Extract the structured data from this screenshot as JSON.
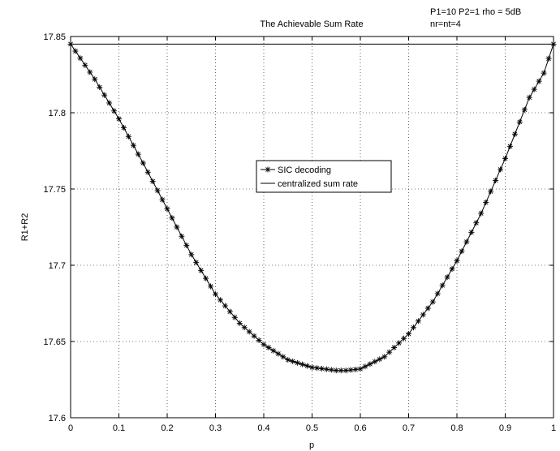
{
  "chart_data": {
    "type": "line",
    "title": "The Achievable Sum Rate",
    "annotation_lines": [
      "P1=10 P2=1 rho = 5dB",
      "nr=nt=4"
    ],
    "xlabel": "p",
    "ylabel": "R1+R2",
    "xlim": [
      0,
      1
    ],
    "ylim": [
      17.6,
      17.85
    ],
    "x_ticks": [
      "0",
      "0.1",
      "0.2",
      "0.3",
      "0.4",
      "0.5",
      "0.6",
      "0.7",
      "0.8",
      "0.9",
      "1"
    ],
    "x_tick_values": [
      0,
      0.1,
      0.2,
      0.3,
      0.4,
      0.5,
      0.6,
      0.7,
      0.8,
      0.9,
      1
    ],
    "y_ticks": [
      "17.6",
      "17.65",
      "17.7",
      "17.75",
      "17.8",
      "17.85"
    ],
    "y_tick_values": [
      17.6,
      17.65,
      17.7,
      17.75,
      17.8,
      17.85
    ],
    "grid": true,
    "legend_position": "center",
    "series": [
      {
        "name": "SIC decoding",
        "marker": "asterisk",
        "x": [
          0,
          0.05,
          0.1,
          0.15,
          0.2,
          0.25,
          0.3,
          0.35,
          0.4,
          0.45,
          0.5,
          0.55,
          0.57,
          0.6,
          0.65,
          0.7,
          0.75,
          0.8,
          0.85,
          0.9,
          0.95,
          0.98,
          1
        ],
        "y": [
          17.845,
          17.822,
          17.796,
          17.767,
          17.737,
          17.707,
          17.681,
          17.662,
          17.648,
          17.638,
          17.633,
          17.631,
          17.631,
          17.632,
          17.64,
          17.655,
          17.676,
          17.703,
          17.734,
          17.77,
          17.81,
          17.826,
          17.845
        ]
      },
      {
        "name": "centralized sum rate",
        "marker": "none",
        "x": [
          0,
          1
        ],
        "y": [
          17.845,
          17.845
        ]
      }
    ]
  }
}
